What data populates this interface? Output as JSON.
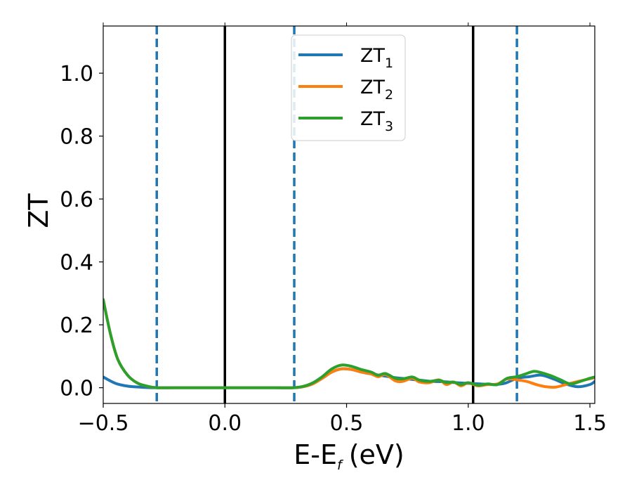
{
  "chart_data": {
    "type": "line",
    "title": "",
    "xlabel": "E-E",
    "xlabel_sub": "f",
    "xlabel_unit": "(eV)",
    "ylabel": "ZT",
    "xlim": [
      -0.5,
      1.52
    ],
    "ylim": [
      -0.05,
      1.15
    ],
    "xticks": [
      -0.5,
      0.0,
      0.5,
      1.0,
      1.5
    ],
    "xtick_labels": [
      "−0.5",
      "0.0",
      "0.5",
      "1.0",
      "1.5"
    ],
    "yticks": [
      0.0,
      0.2,
      0.4,
      0.6,
      0.8,
      1.0
    ],
    "ytick_labels": [
      "0.0",
      "0.2",
      "0.4",
      "0.6",
      "0.8",
      "1.0"
    ],
    "grid": false,
    "legend_position": "top-center",
    "series": [
      {
        "name": "ZT",
        "name_sub": "1",
        "color": "#1f77b4",
        "x": [
          -0.5,
          -0.45,
          -0.4,
          -0.35,
          -0.3,
          -0.2,
          0.0,
          0.2,
          0.28,
          0.32,
          0.36,
          0.4,
          0.44,
          0.48,
          0.52,
          0.56,
          0.6,
          0.65,
          0.7,
          0.75,
          0.8,
          0.85,
          0.9,
          0.95,
          1.0,
          1.05,
          1.1,
          1.15,
          1.2,
          1.25,
          1.3,
          1.35,
          1.4,
          1.45,
          1.5,
          1.52
        ],
        "y": [
          0.034,
          0.014,
          0.005,
          0.002,
          0.0,
          0.0,
          0.0,
          0.0,
          0.0,
          0.003,
          0.012,
          0.03,
          0.05,
          0.06,
          0.058,
          0.05,
          0.044,
          0.038,
          0.032,
          0.028,
          0.024,
          0.02,
          0.019,
          0.016,
          0.014,
          0.012,
          0.01,
          0.014,
          0.03,
          0.035,
          0.04,
          0.028,
          0.012,
          0.003,
          0.01,
          0.02
        ]
      },
      {
        "name": "ZT",
        "name_sub": "2",
        "color": "#ff7f0e",
        "x": [
          -0.5,
          -0.47,
          -0.44,
          -0.4,
          -0.36,
          -0.32,
          -0.28,
          -0.2,
          0.0,
          0.2,
          0.28,
          0.32,
          0.36,
          0.4,
          0.44,
          0.48,
          0.52,
          0.56,
          0.6,
          0.63,
          0.66,
          0.7,
          0.73,
          0.77,
          0.8,
          0.84,
          0.88,
          0.91,
          0.94,
          0.97,
          1.0,
          1.04,
          1.08,
          1.12,
          1.16,
          1.2,
          1.24,
          1.28,
          1.32,
          1.36,
          1.4,
          1.44,
          1.48,
          1.52
        ],
        "y": [
          0.28,
          0.17,
          0.09,
          0.04,
          0.015,
          0.005,
          0.0,
          0.0,
          0.0,
          0.0,
          0.0,
          0.003,
          0.012,
          0.03,
          0.05,
          0.06,
          0.058,
          0.05,
          0.044,
          0.035,
          0.042,
          0.022,
          0.02,
          0.03,
          0.018,
          0.016,
          0.025,
          0.01,
          0.018,
          0.006,
          0.015,
          0.006,
          0.01,
          0.012,
          0.028,
          0.025,
          0.02,
          0.01,
          0.003,
          0.002,
          0.01,
          0.018,
          0.025,
          0.032
        ]
      },
      {
        "name": "ZT",
        "name_sub": "3",
        "color": "#2ca02c",
        "x": [
          -0.5,
          -0.47,
          -0.44,
          -0.4,
          -0.36,
          -0.32,
          -0.28,
          -0.2,
          0.0,
          0.2,
          0.28,
          0.32,
          0.36,
          0.4,
          0.44,
          0.48,
          0.52,
          0.56,
          0.6,
          0.63,
          0.66,
          0.7,
          0.73,
          0.77,
          0.8,
          0.84,
          0.88,
          0.91,
          0.94,
          0.97,
          1.0,
          1.04,
          1.08,
          1.12,
          1.16,
          1.2,
          1.24,
          1.27,
          1.3,
          1.34,
          1.38,
          1.42,
          1.46,
          1.5,
          1.52
        ],
        "y": [
          0.28,
          0.17,
          0.09,
          0.04,
          0.015,
          0.005,
          0.0,
          0.0,
          0.0,
          0.0,
          0.0,
          0.004,
          0.015,
          0.035,
          0.06,
          0.072,
          0.068,
          0.058,
          0.05,
          0.04,
          0.045,
          0.03,
          0.028,
          0.034,
          0.024,
          0.02,
          0.024,
          0.016,
          0.018,
          0.01,
          0.016,
          0.008,
          0.012,
          0.01,
          0.03,
          0.035,
          0.045,
          0.052,
          0.048,
          0.038,
          0.025,
          0.012,
          0.02,
          0.03,
          0.034
        ]
      }
    ],
    "vlines": [
      {
        "x": -0.28,
        "style": "dashed",
        "color": "#1f77b4"
      },
      {
        "x": 0.0,
        "style": "solid",
        "color": "#000000"
      },
      {
        "x": 0.285,
        "style": "dashed",
        "color": "#1f77b4"
      },
      {
        "x": 1.02,
        "style": "solid",
        "color": "#000000"
      },
      {
        "x": 1.2,
        "style": "dashed",
        "color": "#1f77b4"
      }
    ]
  }
}
